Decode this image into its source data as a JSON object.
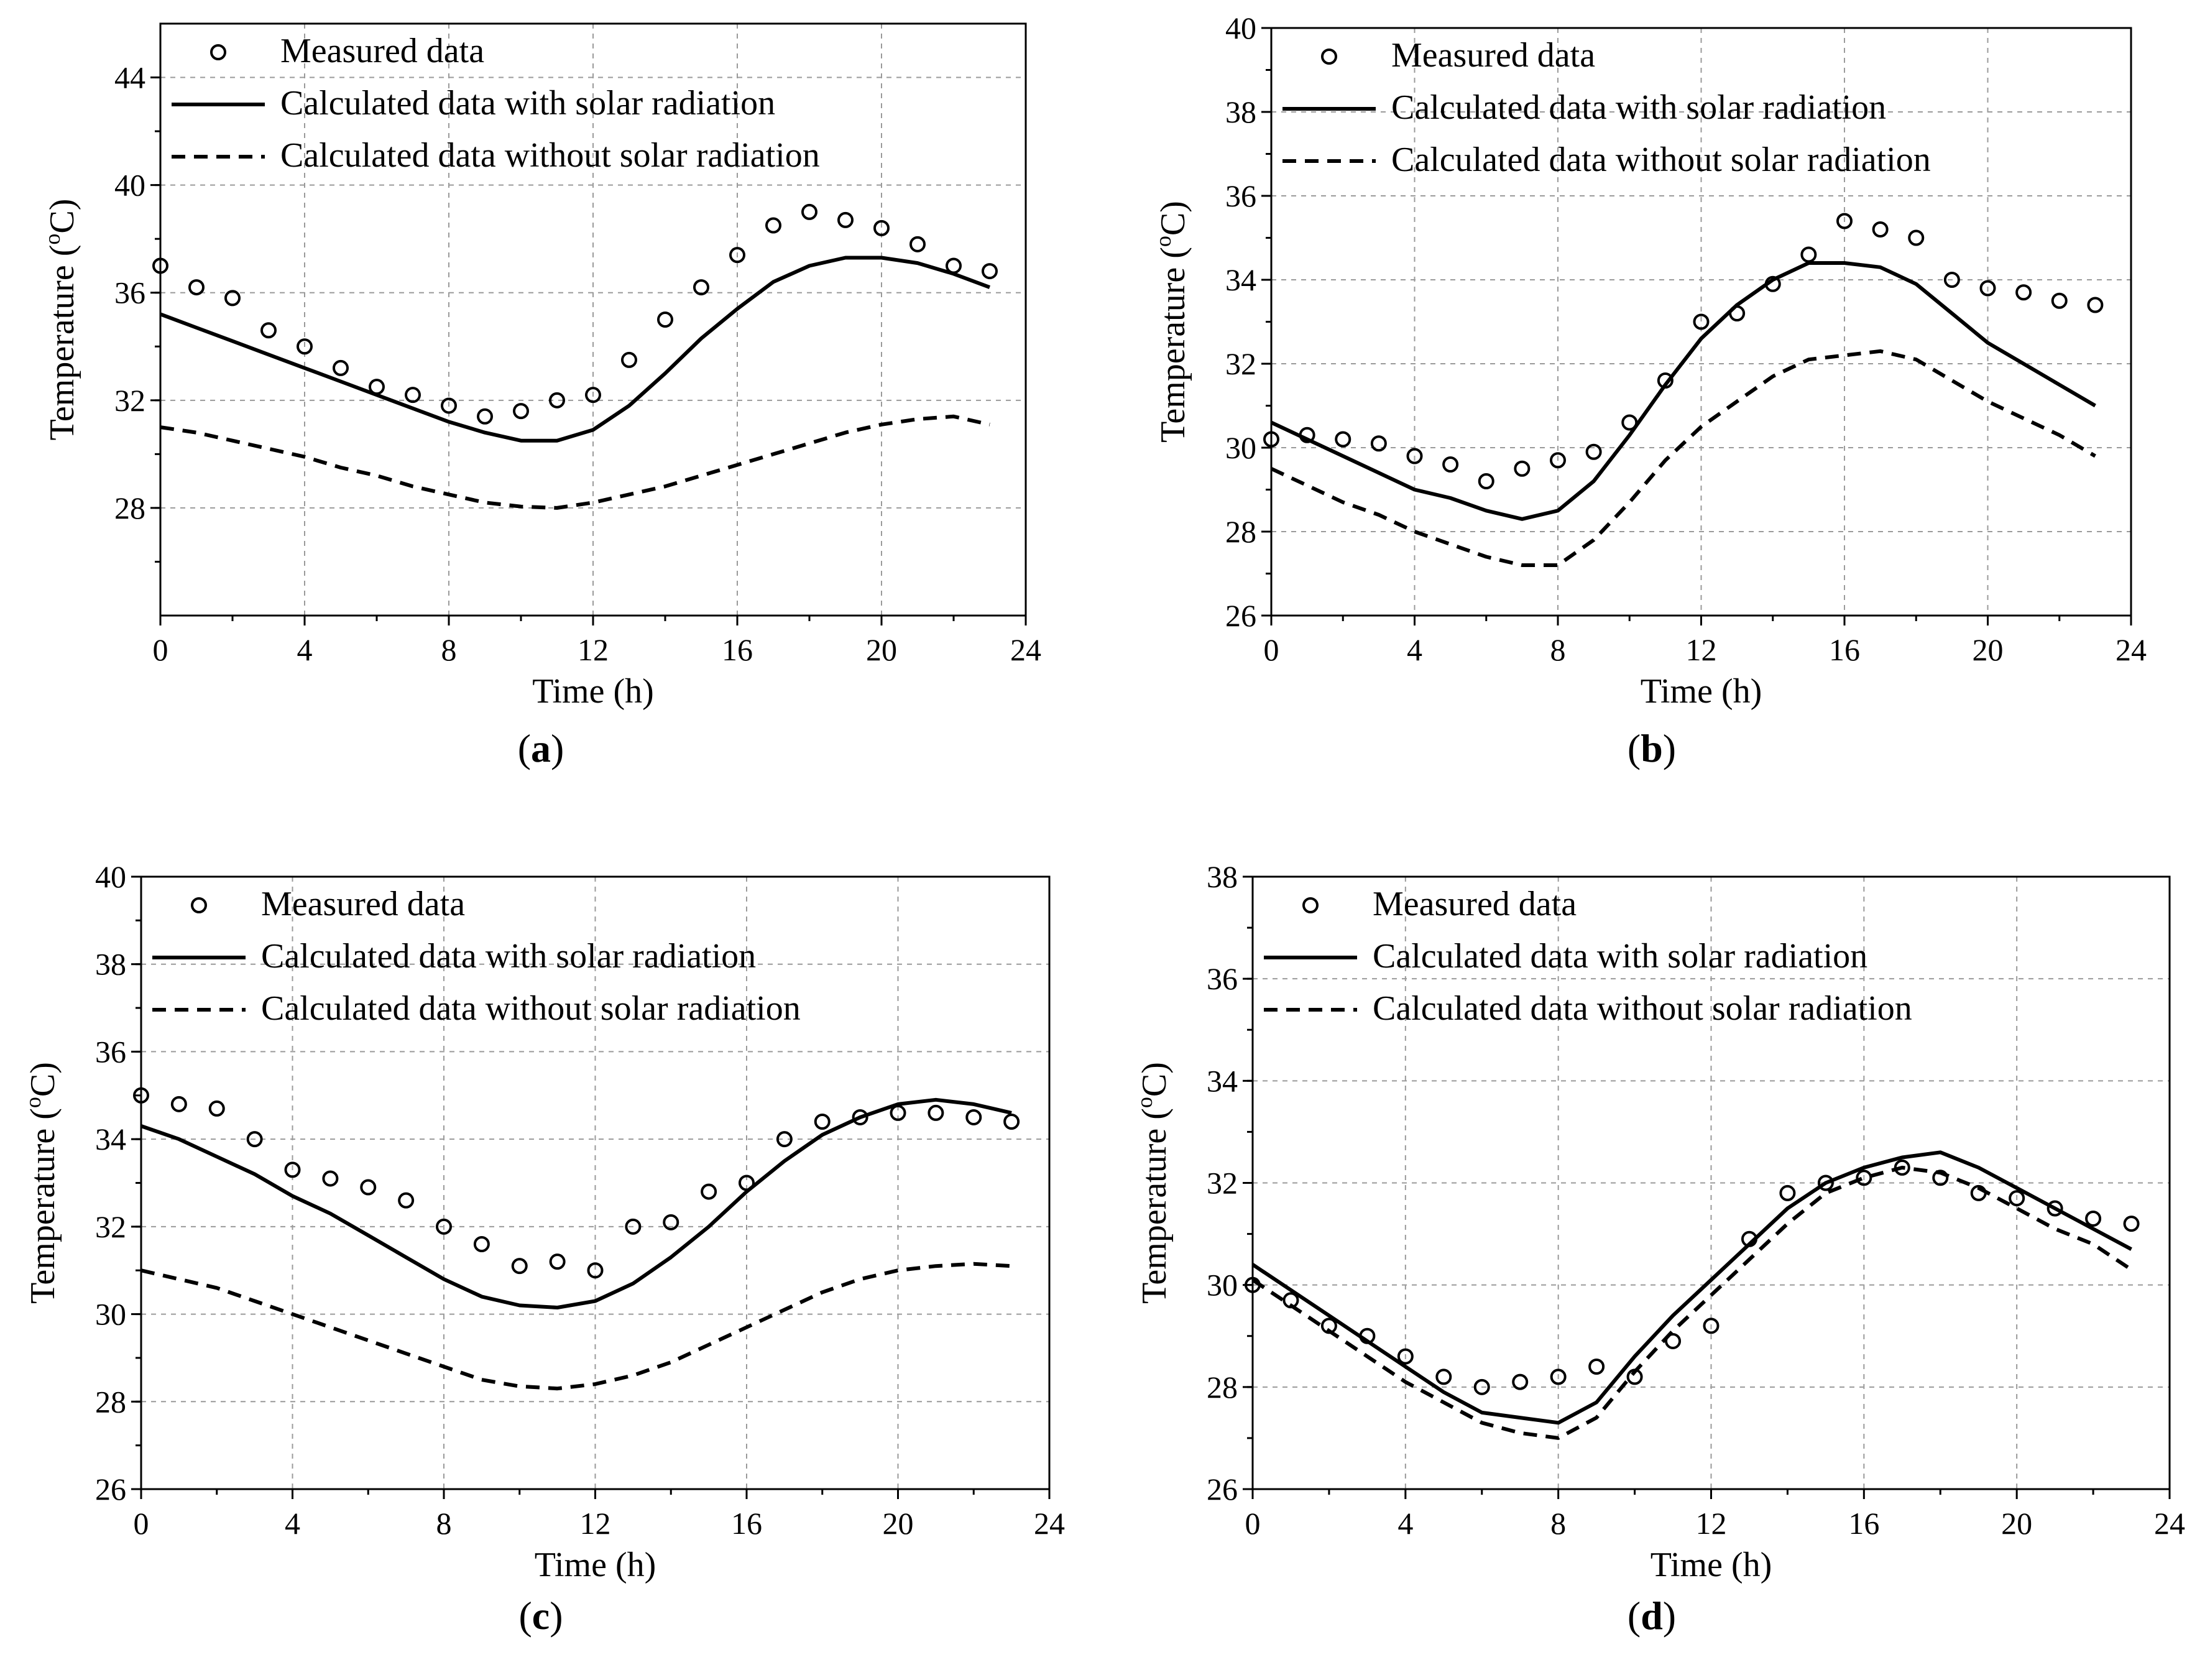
{
  "chart_data": [
    {
      "type": "line",
      "panel_label": "a",
      "xlabel": "Time (h)",
      "ylabel_prefix": "Temperature (",
      "ylabel_sup": "o",
      "ylabel_suffix": "C)",
      "xlim": [
        0,
        24
      ],
      "ylim": [
        24,
        46
      ],
      "xticks": [
        0,
        4,
        8,
        12,
        16,
        20,
        24
      ],
      "yticks": [
        28,
        32,
        36,
        40,
        44
      ],
      "grid": true,
      "legend_position": "top-left",
      "series": [
        {
          "name": "Measured data",
          "style": "markers",
          "x": [
            0,
            1,
            2,
            3,
            4,
            5,
            6,
            7,
            8,
            9,
            10,
            11,
            12,
            13,
            14,
            15,
            16,
            17,
            18,
            19,
            20,
            21,
            22,
            23
          ],
          "y": [
            37.0,
            36.2,
            35.8,
            34.6,
            34.0,
            33.2,
            32.5,
            32.2,
            31.8,
            31.4,
            31.6,
            32.0,
            32.2,
            33.5,
            35.0,
            36.2,
            37.4,
            38.5,
            39.0,
            38.7,
            38.4,
            37.8,
            37.0,
            36.8
          ]
        },
        {
          "name": "Calculated data with solar radiation",
          "style": "solid",
          "x": [
            0,
            1,
            2,
            3,
            4,
            5,
            6,
            7,
            8,
            9,
            10,
            11,
            12,
            13,
            14,
            15,
            16,
            17,
            18,
            19,
            20,
            21,
            22,
            23
          ],
          "y": [
            35.2,
            34.7,
            34.2,
            33.7,
            33.2,
            32.7,
            32.2,
            31.7,
            31.2,
            30.8,
            30.5,
            30.5,
            30.9,
            31.8,
            33.0,
            34.3,
            35.4,
            36.4,
            37.0,
            37.3,
            37.3,
            37.1,
            36.7,
            36.2
          ]
        },
        {
          "name": "Calculated data without solar radiation",
          "style": "dashed",
          "x": [
            0,
            1,
            2,
            3,
            4,
            5,
            6,
            7,
            8,
            9,
            10,
            11,
            12,
            13,
            14,
            15,
            16,
            17,
            18,
            19,
            20,
            21,
            22,
            23
          ],
          "y": [
            31.0,
            30.8,
            30.5,
            30.2,
            29.9,
            29.5,
            29.2,
            28.8,
            28.5,
            28.2,
            28.05,
            28.0,
            28.2,
            28.5,
            28.8,
            29.2,
            29.6,
            30.0,
            30.4,
            30.8,
            31.1,
            31.3,
            31.4,
            31.1
          ]
        }
      ]
    },
    {
      "type": "line",
      "panel_label": "b",
      "xlabel": "Time (h)",
      "ylabel_prefix": "Temperature (",
      "ylabel_sup": "o",
      "ylabel_suffix": "C)",
      "xlim": [
        0,
        24
      ],
      "ylim": [
        26,
        40
      ],
      "xticks": [
        0,
        4,
        8,
        12,
        16,
        20,
        24
      ],
      "yticks": [
        26,
        28,
        30,
        32,
        34,
        36,
        38,
        40
      ],
      "grid": true,
      "legend_position": "top-left",
      "series": [
        {
          "name": "Measured data",
          "style": "markers",
          "x": [
            0,
            1,
            2,
            3,
            4,
            5,
            6,
            7,
            8,
            9,
            10,
            11,
            12,
            13,
            14,
            15,
            16,
            17,
            18,
            19,
            20,
            21,
            22,
            23
          ],
          "y": [
            30.2,
            30.3,
            30.2,
            30.1,
            29.8,
            29.6,
            29.2,
            29.5,
            29.7,
            29.9,
            30.6,
            31.6,
            33.0,
            33.2,
            33.9,
            34.6,
            35.4,
            35.2,
            35.0,
            34.0,
            33.8,
            33.7,
            33.5,
            33.4
          ]
        },
        {
          "name": "Calculated data with solar radiation",
          "style": "solid",
          "x": [
            0,
            1,
            2,
            3,
            4,
            5,
            6,
            7,
            8,
            9,
            10,
            11,
            12,
            13,
            14,
            15,
            16,
            17,
            18,
            19,
            20,
            21,
            22,
            23
          ],
          "y": [
            30.6,
            30.2,
            29.8,
            29.4,
            29.0,
            28.8,
            28.5,
            28.3,
            28.5,
            29.2,
            30.3,
            31.5,
            32.6,
            33.4,
            34.0,
            34.4,
            34.4,
            34.3,
            33.9,
            33.2,
            32.5,
            32.0,
            31.5,
            31.0
          ]
        },
        {
          "name": "Calculated data without solar radiation",
          "style": "dashed",
          "x": [
            0,
            1,
            2,
            3,
            4,
            5,
            6,
            7,
            8,
            9,
            10,
            11,
            12,
            13,
            14,
            15,
            16,
            17,
            18,
            19,
            20,
            21,
            22,
            23
          ],
          "y": [
            29.5,
            29.1,
            28.7,
            28.4,
            28.0,
            27.7,
            27.4,
            27.2,
            27.2,
            27.8,
            28.7,
            29.7,
            30.5,
            31.1,
            31.7,
            32.1,
            32.2,
            32.3,
            32.1,
            31.6,
            31.1,
            30.7,
            30.3,
            29.8
          ]
        }
      ]
    },
    {
      "type": "line",
      "panel_label": "c",
      "xlabel": "Time (h)",
      "ylabel_prefix": "Temperature (",
      "ylabel_sup": "o",
      "ylabel_suffix": "C)",
      "xlim": [
        0,
        24
      ],
      "ylim": [
        26,
        40
      ],
      "xticks": [
        0,
        4,
        8,
        12,
        16,
        20,
        24
      ],
      "yticks": [
        26,
        28,
        30,
        32,
        34,
        36,
        38,
        40
      ],
      "grid": true,
      "legend_position": "top-left",
      "series": [
        {
          "name": "Measured data",
          "style": "markers",
          "x": [
            0,
            1,
            2,
            3,
            4,
            5,
            6,
            7,
            8,
            9,
            10,
            11,
            12,
            13,
            14,
            15,
            16,
            17,
            18,
            19,
            20,
            21,
            22,
            23
          ],
          "y": [
            35.0,
            34.8,
            34.7,
            34.0,
            33.3,
            33.1,
            32.9,
            32.6,
            32.0,
            31.6,
            31.1,
            31.2,
            31.0,
            32.0,
            32.1,
            32.8,
            33.0,
            34.0,
            34.4,
            34.5,
            34.6,
            34.6,
            34.5,
            34.4
          ]
        },
        {
          "name": "Calculated data with solar radiation",
          "style": "solid",
          "x": [
            0,
            1,
            2,
            3,
            4,
            5,
            6,
            7,
            8,
            9,
            10,
            11,
            12,
            13,
            14,
            15,
            16,
            17,
            18,
            19,
            20,
            21,
            22,
            23
          ],
          "y": [
            34.3,
            34.0,
            33.6,
            33.2,
            32.7,
            32.3,
            31.8,
            31.3,
            30.8,
            30.4,
            30.2,
            30.15,
            30.3,
            30.7,
            31.3,
            32.0,
            32.8,
            33.5,
            34.1,
            34.5,
            34.8,
            34.9,
            34.8,
            34.6
          ]
        },
        {
          "name": "Calculated data without solar radiation",
          "style": "dashed",
          "x": [
            0,
            1,
            2,
            3,
            4,
            5,
            6,
            7,
            8,
            9,
            10,
            11,
            12,
            13,
            14,
            15,
            16,
            17,
            18,
            19,
            20,
            21,
            22,
            23
          ],
          "y": [
            31.0,
            30.8,
            30.6,
            30.3,
            30.0,
            29.7,
            29.4,
            29.1,
            28.8,
            28.5,
            28.35,
            28.3,
            28.4,
            28.6,
            28.9,
            29.3,
            29.7,
            30.1,
            30.5,
            30.8,
            31.0,
            31.1,
            31.15,
            31.1
          ]
        }
      ]
    },
    {
      "type": "line",
      "panel_label": "d",
      "xlabel": "Time (h)",
      "ylabel_prefix": "Temperature (",
      "ylabel_sup": "o",
      "ylabel_suffix": "C)",
      "xlim": [
        0,
        24
      ],
      "ylim": [
        26,
        38
      ],
      "xticks": [
        0,
        4,
        8,
        12,
        16,
        20,
        24
      ],
      "yticks": [
        26,
        28,
        30,
        32,
        34,
        36,
        38
      ],
      "grid": true,
      "legend_position": "top-left",
      "series": [
        {
          "name": "Measured data",
          "style": "markers",
          "x": [
            0,
            1,
            2,
            3,
            4,
            5,
            6,
            7,
            8,
            9,
            10,
            11,
            12,
            13,
            14,
            15,
            16,
            17,
            18,
            19,
            20,
            21,
            22,
            23
          ],
          "y": [
            30.0,
            29.7,
            29.2,
            29.0,
            28.6,
            28.2,
            28.0,
            28.1,
            28.2,
            28.4,
            28.2,
            28.9,
            29.2,
            30.9,
            31.8,
            32.0,
            32.1,
            32.3,
            32.1,
            31.8,
            31.7,
            31.5,
            31.3,
            31.2
          ]
        },
        {
          "name": "Calculated data with solar radiation",
          "style": "solid",
          "x": [
            0,
            1,
            2,
            3,
            4,
            5,
            6,
            7,
            8,
            9,
            10,
            11,
            12,
            13,
            14,
            15,
            16,
            17,
            18,
            19,
            20,
            21,
            22,
            23
          ],
          "y": [
            30.4,
            29.9,
            29.4,
            28.9,
            28.4,
            27.9,
            27.5,
            27.4,
            27.3,
            27.7,
            28.6,
            29.4,
            30.1,
            30.8,
            31.5,
            32.0,
            32.3,
            32.5,
            32.6,
            32.3,
            31.9,
            31.5,
            31.1,
            30.7
          ]
        },
        {
          "name": "Calculated data without solar radiation",
          "style": "dashed",
          "x": [
            0,
            1,
            2,
            3,
            4,
            5,
            6,
            7,
            8,
            9,
            10,
            11,
            12,
            13,
            14,
            15,
            16,
            17,
            18,
            19,
            20,
            21,
            22,
            23
          ],
          "y": [
            30.1,
            29.6,
            29.1,
            28.6,
            28.1,
            27.7,
            27.3,
            27.1,
            27.0,
            27.4,
            28.3,
            29.1,
            29.8,
            30.5,
            31.2,
            31.8,
            32.1,
            32.3,
            32.2,
            31.9,
            31.5,
            31.1,
            30.8,
            30.3
          ]
        }
      ]
    }
  ]
}
